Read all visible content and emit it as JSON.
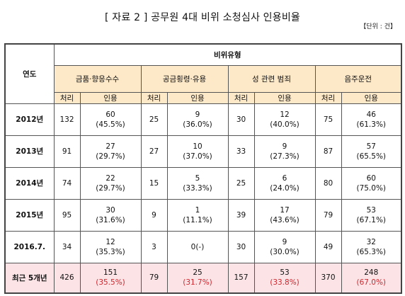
{
  "title": "[ 자료 2 ] 공무원 4대 비위 소청심사 인용비율",
  "unit": "【단위 : 건】",
  "headers": {
    "year": "연도",
    "group": "비위유형",
    "categories": [
      "금품·향응수수",
      "공금횡령·유용",
      "성 관련 범죄",
      "음주운전"
    ],
    "sub": [
      "처리",
      "인용"
    ]
  },
  "rows": [
    {
      "year": "2012년",
      "cells": [
        {
          "p": "132",
          "a": "60",
          "r": "(45.5%)"
        },
        {
          "p": "25",
          "a": "9",
          "r": "(36.0%)"
        },
        {
          "p": "30",
          "a": "12",
          "r": "(40.0%)"
        },
        {
          "p": "75",
          "a": "46",
          "r": "(61.3%)"
        }
      ]
    },
    {
      "year": "2013년",
      "cells": [
        {
          "p": "91",
          "a": "27",
          "r": "(29.7%)"
        },
        {
          "p": "27",
          "a": "10",
          "r": "(37.0%)"
        },
        {
          "p": "33",
          "a": "9",
          "r": "(27.3%)"
        },
        {
          "p": "87",
          "a": "57",
          "r": "(65.5%)"
        }
      ]
    },
    {
      "year": "2014년",
      "cells": [
        {
          "p": "74",
          "a": "22",
          "r": "(29.7%)"
        },
        {
          "p": "15",
          "a": "5",
          "r": "(33.3%)"
        },
        {
          "p": "25",
          "a": "6",
          "r": "(24.0%)"
        },
        {
          "p": "80",
          "a": "60",
          "r": "(75.0%)"
        }
      ]
    },
    {
      "year": "2015년",
      "cells": [
        {
          "p": "95",
          "a": "30",
          "r": "(31.6%)"
        },
        {
          "p": "9",
          "a": "1",
          "r": "(11.1%)"
        },
        {
          "p": "39",
          "a": "17",
          "r": "(43.6%)"
        },
        {
          "p": "79",
          "a": "53",
          "r": "(67.1%)"
        }
      ]
    },
    {
      "year": "2016.7.",
      "cells": [
        {
          "p": "34",
          "a": "12",
          "r": "(35.3%)"
        },
        {
          "p": "3",
          "a": "0(-)",
          "r": ""
        },
        {
          "p": "30",
          "a": "9",
          "r": "(30.0%)"
        },
        {
          "p": "49",
          "a": "32",
          "r": "(65.3%)"
        }
      ]
    }
  ],
  "summary": {
    "year": "최근 5개년",
    "cells": [
      {
        "p": "426",
        "a": "151",
        "r": "(35.5%)"
      },
      {
        "p": "79",
        "a": "25",
        "r": "(31.7%)"
      },
      {
        "p": "157",
        "a": "53",
        "r": "(33.8%)"
      },
      {
        "p": "370",
        "a": "248",
        "r": "(67.0%)"
      }
    ]
  },
  "colors": {
    "header_bg": "#fde8c7",
    "summary_bg": "#fbe3e6",
    "summary_rate": "#d0282e"
  }
}
